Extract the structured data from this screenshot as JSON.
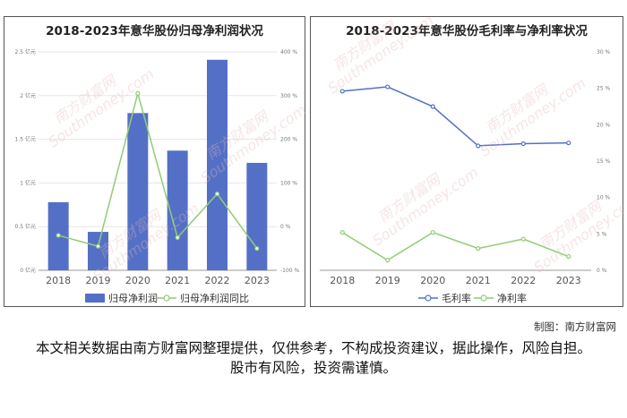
{
  "chart_data": [
    {
      "type": "bar",
      "title": "2018-2023年意华股份归母净利润状况",
      "categories": [
        "2018",
        "2019",
        "2020",
        "2021",
        "2022",
        "2023"
      ],
      "series": [
        {
          "name": "归母净利润",
          "type": "bar",
          "axis": "left",
          "color": "#5470c6",
          "values": [
            0.78,
            0.44,
            1.8,
            1.37,
            2.41,
            1.23
          ]
        },
        {
          "name": "归母净利润同比",
          "type": "line",
          "axis": "right",
          "color": "#91cc75",
          "values": [
            -20,
            -45,
            305,
            -25,
            75,
            -50
          ]
        }
      ],
      "y_left": {
        "ticks": [
          "0 亿元",
          "0.5 亿元",
          "1 亿元",
          "1.5 亿元",
          "2 亿元",
          "2.5 亿元"
        ],
        "range": [
          0,
          2.5
        ]
      },
      "y_right": {
        "ticks": [
          "-100 %",
          "0 %",
          "100 %",
          "200 %",
          "300 %",
          "400 %"
        ],
        "range": [
          -100,
          400
        ]
      },
      "grid": true,
      "legend": "bottom"
    },
    {
      "type": "line",
      "title": "2018-2023年意华股份毛利率与净利率状况",
      "categories": [
        "2018",
        "2019",
        "2020",
        "2021",
        "2022",
        "2023"
      ],
      "series": [
        {
          "name": "毛利率",
          "color": "#5470c6",
          "values": [
            24.6,
            25.2,
            22.5,
            17.1,
            17.4,
            17.5
          ]
        },
        {
          "name": "净利率",
          "color": "#91cc75",
          "values": [
            5.2,
            1.4,
            5.2,
            3.0,
            4.3,
            1.9
          ]
        }
      ],
      "y_right": {
        "ticks": [
          "0 %",
          "5 %",
          "10 %",
          "15 %",
          "20 %",
          "25 %",
          "30 %"
        ],
        "range": [
          0,
          30
        ]
      },
      "grid": false,
      "legend": "bottom"
    }
  ],
  "watermark_text": "南方财富网",
  "watermark_url": "Southmoney.com",
  "credit": "制图：南方财富网",
  "disclaimer": "本文相关数据由南方财富网整理提供，仅供参考，不构成投资建议，据此操作，风险自担。股市有风险，投资需谨慎。"
}
